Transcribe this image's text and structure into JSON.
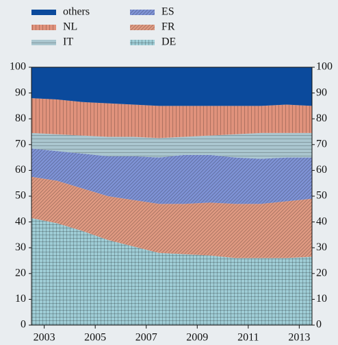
{
  "chart_data": {
    "type": "area",
    "x": [
      2002.5,
      2003.5,
      2004.5,
      2005.5,
      2006.5,
      2007.5,
      2008.5,
      2009.5,
      2010.5,
      2011.5,
      2012.5,
      2013.5
    ],
    "series": [
      {
        "name": "DE",
        "color": "#9fcdd6",
        "hatch": "grid",
        "values": [
          41.5,
          39.5,
          36.5,
          33,
          30.5,
          28,
          27.5,
          27,
          26,
          26,
          26,
          26.5
        ]
      },
      {
        "name": "FR",
        "color": "#e09a82",
        "hatch": "diagonal",
        "values": [
          16,
          16.5,
          16.5,
          17,
          18,
          19,
          19.5,
          20.5,
          21,
          21,
          22,
          22.5
        ]
      },
      {
        "name": "ES",
        "color": "#7f93d6",
        "hatch": "diagonal",
        "values": [
          11,
          11.5,
          13.5,
          15.5,
          17,
          18,
          19,
          18.5,
          18,
          17.5,
          17,
          16
        ]
      },
      {
        "name": "IT",
        "color": "#aac6cf",
        "hatch": "horizontal",
        "values": [
          6,
          6.5,
          7,
          7.5,
          7.5,
          7.5,
          7,
          7.5,
          9,
          10,
          9.5,
          9.5
        ]
      },
      {
        "name": "NL",
        "color": "#e0927c",
        "hatch": "vertical",
        "values": [
          13.5,
          13.5,
          13,
          13,
          12.5,
          12.5,
          12,
          11.5,
          11,
          10.5,
          11,
          10.5
        ]
      },
      {
        "name": "others",
        "color": "#0b4a9c",
        "hatch": "none",
        "values": [
          12,
          12.5,
          13.5,
          14,
          14.5,
          15,
          15,
          15,
          15,
          15,
          14.5,
          15
        ]
      }
    ],
    "xlim": [
      2002.5,
      2013.5
    ],
    "xticks": [
      2003,
      2005,
      2007,
      2009,
      2011,
      2013
    ],
    "ylim": [
      0,
      100
    ],
    "yticks": [
      0,
      10,
      20,
      30,
      40,
      50,
      60,
      70,
      80,
      90,
      100
    ],
    "legend_order": [
      5,
      2,
      4,
      1,
      3,
      0
    ]
  }
}
